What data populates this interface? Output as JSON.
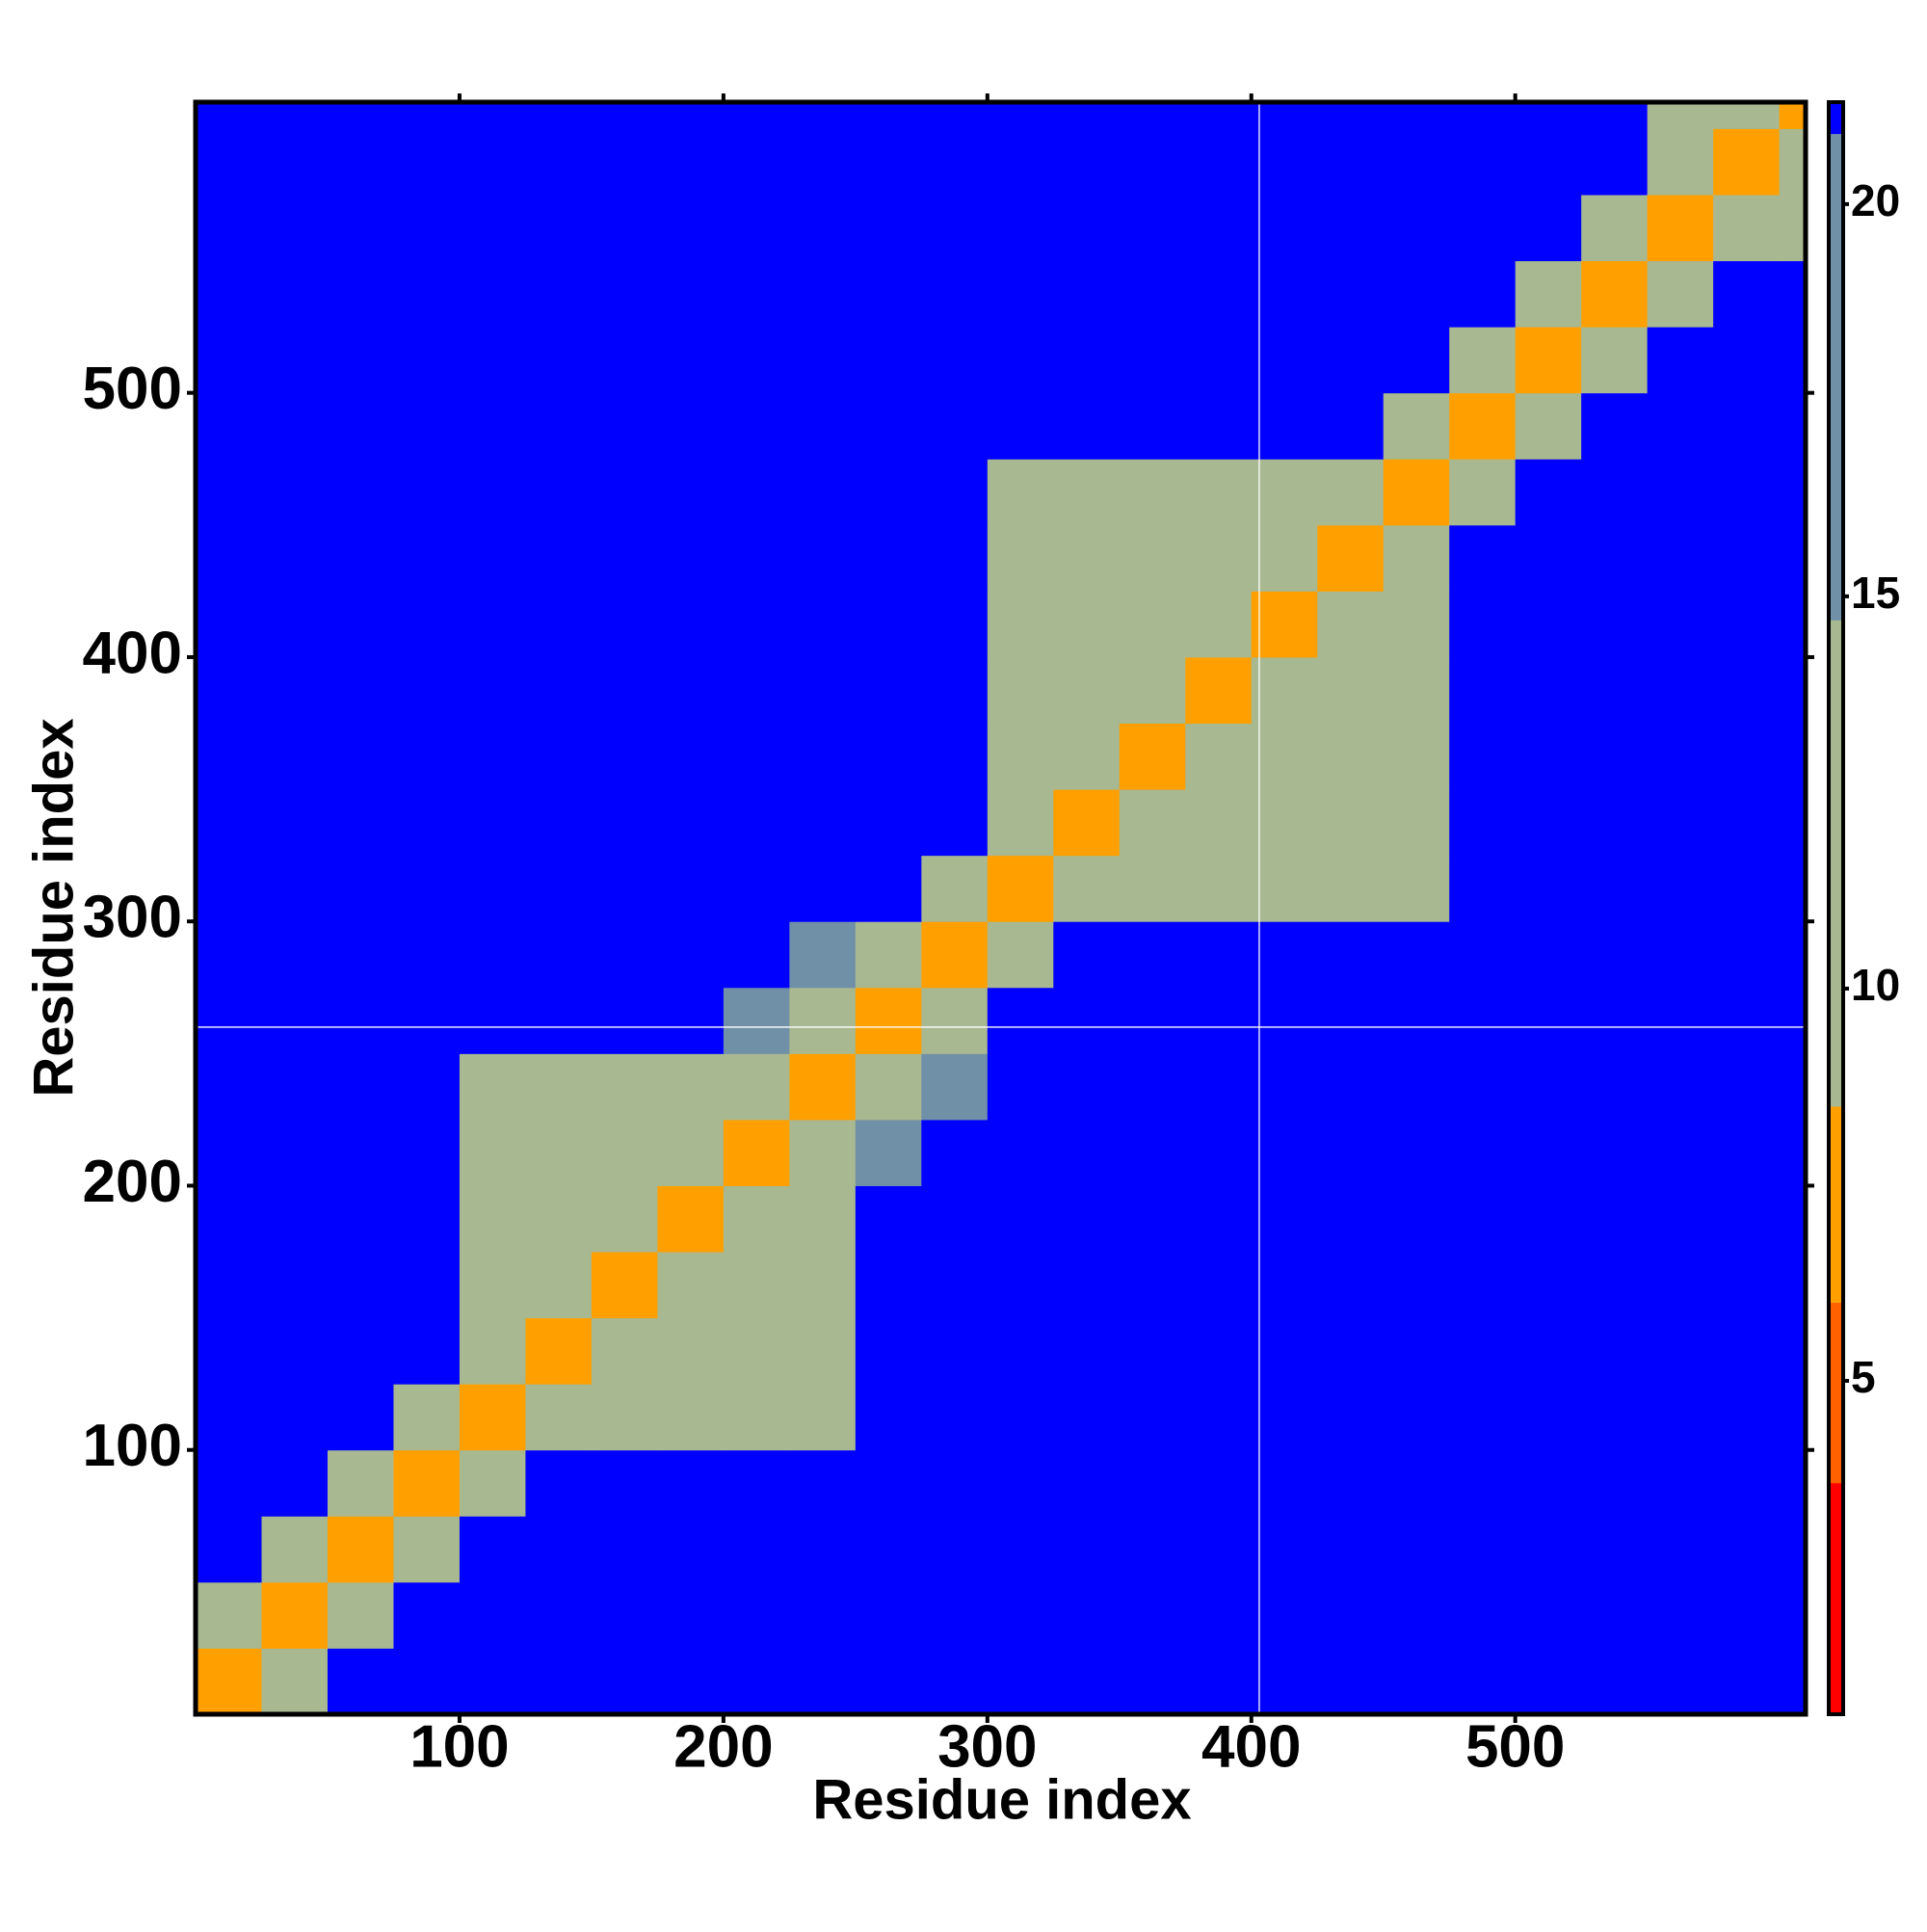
{
  "chart_data": {
    "type": "heatmap",
    "x_label": "Residue index",
    "y_label": "Residue index",
    "bins": [
      0,
      25,
      50,
      75,
      100,
      125,
      150,
      175,
      200,
      225,
      250,
      275,
      300,
      325,
      350,
      375,
      400,
      425,
      450,
      475,
      500,
      525,
      550,
      575,
      600,
      610
    ],
    "z": [
      [
        6,
        12,
        21,
        21,
        21,
        21,
        21,
        21,
        21,
        21,
        21,
        21,
        21,
        21,
        21,
        21,
        21,
        21,
        21,
        21,
        21,
        21,
        21,
        21,
        21
      ],
      [
        12,
        6,
        12,
        21,
        21,
        21,
        21,
        21,
        21,
        21,
        21,
        21,
        21,
        21,
        21,
        21,
        21,
        21,
        21,
        21,
        21,
        21,
        21,
        21,
        21
      ],
      [
        21,
        12,
        6,
        12,
        21,
        21,
        21,
        21,
        21,
        21,
        21,
        21,
        21,
        21,
        21,
        21,
        21,
        21,
        21,
        21,
        21,
        21,
        21,
        21,
        21
      ],
      [
        21,
        21,
        12,
        6,
        12,
        21,
        21,
        21,
        21,
        21,
        21,
        21,
        21,
        21,
        21,
        21,
        21,
        21,
        21,
        21,
        21,
        21,
        21,
        21,
        21
      ],
      [
        21,
        21,
        21,
        12,
        6,
        11,
        13,
        13,
        13,
        13,
        21,
        21,
        21,
        21,
        21,
        21,
        21,
        21,
        21,
        21,
        21,
        21,
        21,
        21,
        21
      ],
      [
        21,
        21,
        21,
        21,
        11,
        6,
        11,
        13,
        13,
        13,
        21,
        21,
        21,
        21,
        21,
        21,
        21,
        21,
        21,
        21,
        21,
        21,
        21,
        21,
        21
      ],
      [
        21,
        21,
        21,
        21,
        13,
        11,
        6,
        11,
        13,
        13,
        21,
        21,
        21,
        21,
        21,
        21,
        21,
        21,
        21,
        21,
        21,
        21,
        21,
        21,
        21
      ],
      [
        21,
        21,
        21,
        21,
        13,
        13,
        11,
        6,
        11,
        13,
        21,
        21,
        21,
        21,
        21,
        21,
        21,
        21,
        21,
        21,
        21,
        21,
        21,
        21,
        21
      ],
      [
        21,
        21,
        21,
        21,
        13,
        13,
        13,
        11,
        6,
        11,
        18,
        21,
        21,
        21,
        21,
        21,
        21,
        21,
        21,
        21,
        21,
        21,
        21,
        21,
        21
      ],
      [
        21,
        21,
        21,
        21,
        13,
        13,
        13,
        13,
        11,
        6,
        12,
        18,
        21,
        21,
        21,
        21,
        21,
        21,
        21,
        21,
        21,
        21,
        21,
        21,
        21
      ],
      [
        21,
        21,
        21,
        21,
        21,
        21,
        21,
        21,
        18,
        12,
        6,
        12,
        21,
        21,
        21,
        21,
        21,
        21,
        21,
        21,
        21,
        21,
        21,
        21,
        21
      ],
      [
        21,
        21,
        21,
        21,
        21,
        21,
        21,
        21,
        21,
        18,
        12,
        6,
        12,
        21,
        21,
        21,
        21,
        21,
        21,
        21,
        21,
        21,
        21,
        21,
        21
      ],
      [
        21,
        21,
        21,
        21,
        21,
        21,
        21,
        21,
        21,
        21,
        21,
        12,
        6,
        11,
        13,
        13,
        13,
        13,
        13,
        21,
        21,
        21,
        21,
        21,
        21
      ],
      [
        21,
        21,
        21,
        21,
        21,
        21,
        21,
        21,
        21,
        21,
        21,
        21,
        11,
        6,
        11,
        13,
        13,
        13,
        13,
        21,
        21,
        21,
        21,
        21,
        21
      ],
      [
        21,
        21,
        21,
        21,
        21,
        21,
        21,
        21,
        21,
        21,
        21,
        21,
        13,
        11,
        6,
        11,
        13,
        13,
        13,
        21,
        21,
        21,
        21,
        21,
        21
      ],
      [
        21,
        21,
        21,
        21,
        21,
        21,
        21,
        21,
        21,
        21,
        21,
        21,
        13,
        13,
        11,
        6,
        11,
        13,
        13,
        21,
        21,
        21,
        21,
        21,
        21
      ],
      [
        21,
        21,
        21,
        21,
        21,
        21,
        21,
        21,
        21,
        21,
        21,
        21,
        13,
        13,
        13,
        11,
        6,
        11,
        13,
        21,
        21,
        21,
        21,
        21,
        21
      ],
      [
        21,
        21,
        21,
        21,
        21,
        21,
        21,
        21,
        21,
        21,
        21,
        21,
        13,
        13,
        13,
        13,
        11,
        6,
        11,
        21,
        21,
        21,
        21,
        21,
        21
      ],
      [
        21,
        21,
        21,
        21,
        21,
        21,
        21,
        21,
        21,
        21,
        21,
        21,
        13,
        13,
        13,
        13,
        13,
        11,
        6,
        12,
        21,
        21,
        21,
        21,
        21
      ],
      [
        21,
        21,
        21,
        21,
        21,
        21,
        21,
        21,
        21,
        21,
        21,
        21,
        21,
        21,
        21,
        21,
        21,
        21,
        12,
        6,
        12,
        21,
        21,
        21,
        21
      ],
      [
        21,
        21,
        21,
        21,
        21,
        21,
        21,
        21,
        21,
        21,
        21,
        21,
        21,
        21,
        21,
        21,
        21,
        21,
        21,
        12,
        6,
        12,
        21,
        21,
        21
      ],
      [
        21,
        21,
        21,
        21,
        21,
        21,
        21,
        21,
        21,
        21,
        21,
        21,
        21,
        21,
        21,
        21,
        21,
        21,
        21,
        21,
        12,
        6,
        12,
        21,
        21
      ],
      [
        21,
        21,
        21,
        21,
        21,
        21,
        21,
        21,
        21,
        21,
        21,
        21,
        21,
        21,
        21,
        21,
        21,
        21,
        21,
        21,
        21,
        12,
        6,
        11,
        12
      ],
      [
        21,
        21,
        21,
        21,
        21,
        21,
        21,
        21,
        21,
        21,
        21,
        21,
        21,
        21,
        21,
        21,
        21,
        21,
        21,
        21,
        21,
        21,
        11,
        6,
        11
      ],
      [
        21,
        21,
        21,
        21,
        21,
        21,
        21,
        21,
        21,
        21,
        21,
        21,
        21,
        21,
        21,
        21,
        21,
        21,
        21,
        21,
        21,
        21,
        12,
        11,
        6
      ]
    ],
    "xlim": [
      0,
      610
    ],
    "ylim": [
      0,
      610
    ],
    "xticks": [
      100,
      200,
      300,
      400,
      500
    ],
    "yticks": [
      100,
      200,
      300,
      400,
      500
    ],
    "vlines": [
      403
    ],
    "hlines": [
      260
    ],
    "colorscale": [
      [
        0.75,
        "#ff0000"
      ],
      [
        3.7,
        "#ff6000"
      ],
      [
        6,
        "#ffa000"
      ],
      [
        8.5,
        "#a8b890"
      ],
      [
        14.7,
        "#7090a8"
      ],
      [
        20.9,
        "#0000ff"
      ]
    ],
    "colorbar": {
      "lim": [
        0.75,
        21.3
      ],
      "ticks": [
        5,
        10,
        15,
        20
      ]
    }
  }
}
